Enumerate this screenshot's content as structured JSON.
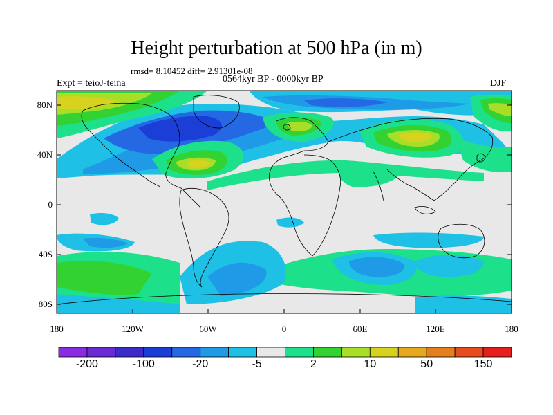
{
  "title": "Height perturbation at 500 hPa (in m)",
  "stats": "rmsd= 8.10452 diff= 2.91301e-08",
  "experiment": "Expt = teioJ-teina",
  "period": "0564kyr BP - 0000kyr BP",
  "season": "DJF",
  "lat_ticks": [
    "80N",
    "40N",
    "0",
    "40S",
    "80S"
  ],
  "lon_ticks": [
    "180",
    "120W",
    "60W",
    "0",
    "60E",
    "120E",
    "180"
  ],
  "colorbar": {
    "labels": [
      "-200",
      "-100",
      "-20",
      "-5",
      "2",
      "10",
      "50",
      "150"
    ],
    "colors": [
      "#8a2be2",
      "#6a2ad4",
      "#3c2bc8",
      "#1a3ed6",
      "#2468e4",
      "#1f9ae6",
      "#1fc0e6",
      "#e8e8e8",
      "#1de08a",
      "#33d233",
      "#a8de28",
      "#d6d21e",
      "#e6a81e",
      "#e67e1e",
      "#e64c1e",
      "#e61e1e"
    ]
  },
  "fields": {
    "land_color": "#e8e8e8",
    "ocean_background": "#e8e8e8"
  }
}
